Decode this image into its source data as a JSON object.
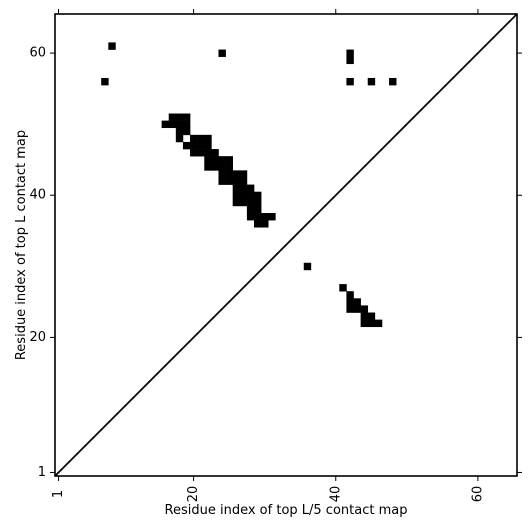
{
  "chart_data": {
    "type": "heatmap",
    "xlabel": "Residue index of top L/5 contact map",
    "ylabel": "Residue index of top L contact map",
    "xlim": [
      0.5,
      65.5
    ],
    "ylim": [
      0.5,
      65.5
    ],
    "x_ticks": [
      1,
      20,
      40,
      60
    ],
    "y_ticks": [
      1,
      20,
      40,
      60
    ],
    "diagonal": true,
    "colors": {
      "contact": "#000000",
      "background": "#ffffff",
      "axis": "#000000"
    },
    "contacts": [
      [
        8.5,
        61
      ],
      [
        24,
        60
      ],
      [
        42,
        60
      ],
      [
        42,
        59
      ],
      [
        7.5,
        56
      ],
      [
        42,
        56
      ],
      [
        45,
        56
      ],
      [
        48,
        56
      ],
      [
        17,
        51
      ],
      [
        18,
        51
      ],
      [
        19,
        51
      ],
      [
        16,
        50
      ],
      [
        17,
        50
      ],
      [
        18,
        50
      ],
      [
        19,
        50
      ],
      [
        18,
        49
      ],
      [
        19,
        49
      ],
      [
        18,
        48
      ],
      [
        20,
        48
      ],
      [
        21,
        48
      ],
      [
        22,
        48
      ],
      [
        19,
        47
      ],
      [
        20,
        47
      ],
      [
        21,
        47
      ],
      [
        22,
        47
      ],
      [
        20,
        46
      ],
      [
        21,
        46
      ],
      [
        22,
        46
      ],
      [
        23,
        46
      ],
      [
        22,
        45
      ],
      [
        23,
        45
      ],
      [
        24,
        45
      ],
      [
        25,
        45
      ],
      [
        22,
        44
      ],
      [
        23,
        44
      ],
      [
        24,
        44
      ],
      [
        25,
        44
      ],
      [
        24,
        43
      ],
      [
        25,
        43
      ],
      [
        26,
        43
      ],
      [
        27,
        43
      ],
      [
        24,
        42
      ],
      [
        25,
        42
      ],
      [
        26,
        42
      ],
      [
        27,
        42
      ],
      [
        26,
        41
      ],
      [
        27,
        41
      ],
      [
        28,
        41
      ],
      [
        26,
        40
      ],
      [
        27,
        40
      ],
      [
        28,
        40
      ],
      [
        29,
        40
      ],
      [
        26,
        39
      ],
      [
        27,
        39
      ],
      [
        28,
        39
      ],
      [
        29,
        39
      ],
      [
        28,
        38
      ],
      [
        29,
        38
      ],
      [
        28,
        37
      ],
      [
        29,
        37
      ],
      [
        30,
        37
      ],
      [
        31,
        37
      ],
      [
        29,
        36
      ],
      [
        30,
        36
      ],
      [
        36,
        30
      ],
      [
        41,
        27
      ],
      [
        42,
        26
      ],
      [
        42,
        25
      ],
      [
        43,
        25
      ],
      [
        42,
        24
      ],
      [
        43,
        24
      ],
      [
        44,
        24
      ],
      [
        44,
        23
      ],
      [
        45,
        23
      ],
      [
        44,
        22
      ],
      [
        45,
        22
      ],
      [
        46,
        22
      ]
    ]
  }
}
